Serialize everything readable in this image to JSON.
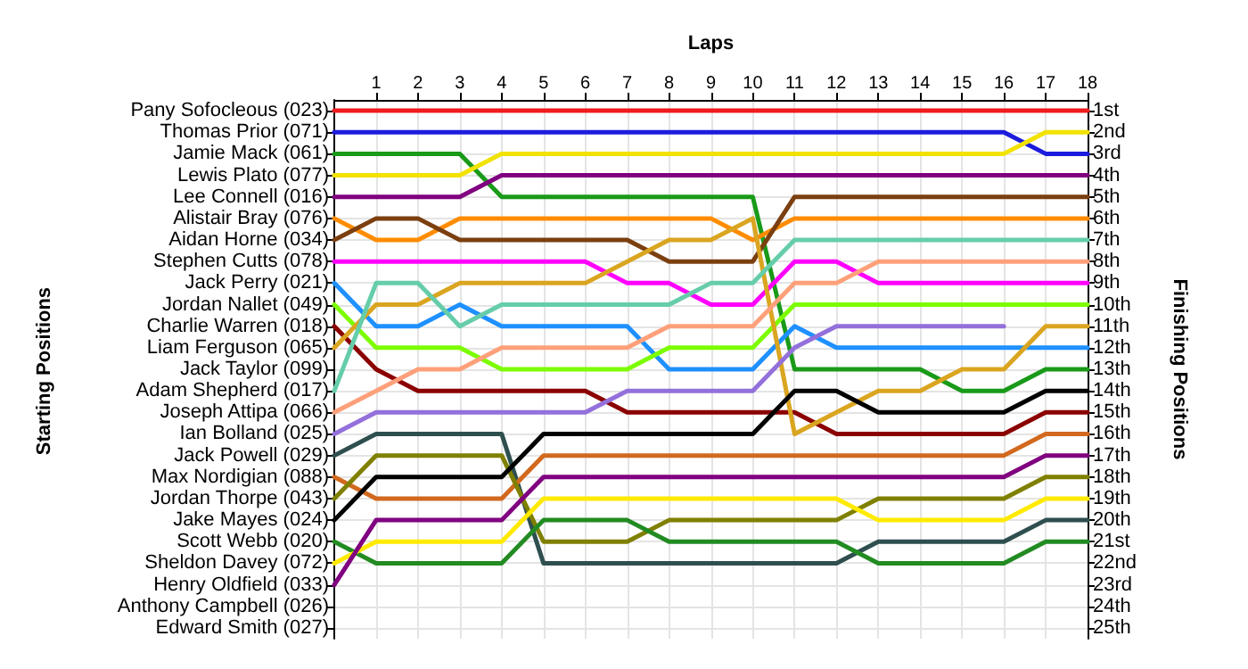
{
  "chart_data": {
    "type": "line",
    "xlabel": "Laps",
    "annotations": [
      "Starting Positions"
    ],
    "y2label": "Finishing Positions",
    "x": [
      0,
      1,
      2,
      3,
      4,
      5,
      6,
      7,
      8,
      9,
      10,
      11,
      12,
      13,
      14,
      15,
      16,
      17,
      18
    ],
    "xlim": [
      0,
      18
    ],
    "xticks": [
      1,
      2,
      3,
      4,
      5,
      6,
      7,
      8,
      9,
      10,
      11,
      12,
      13,
      14,
      15,
      16,
      17,
      18
    ],
    "y_categories": [
      "Pany Sofocleous (023)",
      "Thomas Prior (071)",
      "Jamie Mack (061)",
      "Lewis Plato (077)",
      "Lee Connell (016)",
      "Alistair Bray (076)",
      "Aidan Horne (034)",
      "Stephen Cutts (078)",
      "Jack Perry (021)",
      "Jordan Nallet (049)",
      "Charlie Warren (018)",
      "Liam Ferguson (065)",
      "Jack Taylor (099)",
      "Adam Shepherd (017)",
      "Joseph Attipa (066)",
      "Ian Bolland (025)",
      "Jack Powell (029)",
      "Max Nordigian (088)",
      "Jordan Thorpe (043)",
      "Jake Mayes (024)",
      "Scott Webb (020)",
      "Sheldon Davey (072)",
      "Henry Oldfield (033)",
      "Anthony Campbell (026)",
      "Edward Smith (027)"
    ],
    "y2lim": [
      25.5,
      0.5
    ],
    "y2ticks": [
      {
        "value": 1,
        "label": "1st"
      },
      {
        "value": 2,
        "label": "2nd"
      },
      {
        "value": 3,
        "label": "3rd"
      },
      {
        "value": 4,
        "label": "4th"
      },
      {
        "value": 5,
        "label": "5th"
      },
      {
        "value": 6,
        "label": "6th"
      },
      {
        "value": 7,
        "label": "7th"
      },
      {
        "value": 8,
        "label": "8th"
      },
      {
        "value": 9,
        "label": "9th"
      },
      {
        "value": 10,
        "label": "10th"
      },
      {
        "value": 11,
        "label": "11th"
      },
      {
        "value": 12,
        "label": "12th"
      },
      {
        "value": 13,
        "label": "13th"
      },
      {
        "value": 14,
        "label": "14th"
      },
      {
        "value": 15,
        "label": "15th"
      },
      {
        "value": 16,
        "label": "16th"
      },
      {
        "value": 17,
        "label": "17th"
      },
      {
        "value": 18,
        "label": "18th"
      },
      {
        "value": 19,
        "label": "19th"
      },
      {
        "value": 20,
        "label": "20th"
      },
      {
        "value": 21,
        "label": "21st"
      },
      {
        "value": 22,
        "label": "22nd"
      },
      {
        "value": 23,
        "label": "23rd"
      },
      {
        "value": 24,
        "label": "24th"
      },
      {
        "value": 25,
        "label": "25th"
      }
    ],
    "grid": true,
    "marker": "none",
    "line_style": "solid",
    "series": [
      {
        "color": "#ee1c1c",
        "axis": "y2",
        "values": [
          1,
          1,
          1,
          1,
          1,
          1,
          1,
          1,
          1,
          1,
          1,
          1,
          1,
          1,
          1,
          1,
          1,
          1,
          1
        ]
      },
      {
        "color": "#1c1cdd",
        "axis": "y2",
        "values": [
          2,
          2,
          2,
          2,
          2,
          2,
          2,
          2,
          2,
          2,
          2,
          2,
          2,
          2,
          2,
          2,
          2,
          3,
          3
        ]
      },
      {
        "color": "#199a19",
        "axis": "y2",
        "values": [
          3,
          3,
          3,
          3,
          5,
          5,
          5,
          5,
          5,
          5,
          5,
          13,
          13,
          13,
          13,
          14,
          14,
          13,
          13
        ]
      },
      {
        "color": "#f2e200",
        "axis": "y2",
        "values": [
          4,
          4,
          4,
          4,
          3,
          3,
          3,
          3,
          3,
          3,
          3,
          3,
          3,
          3,
          3,
          3,
          3,
          2,
          2
        ]
      },
      {
        "color": "#800080",
        "axis": "y2",
        "values": [
          5,
          5,
          5,
          5,
          4,
          4,
          4,
          4,
          4,
          4,
          4,
          4,
          4,
          4,
          4,
          4,
          4,
          4,
          4
        ]
      },
      {
        "color": "#ff8c00",
        "axis": "y2",
        "values": [
          6,
          7,
          7,
          6,
          6,
          6,
          6,
          6,
          6,
          6,
          7,
          6,
          6,
          6,
          6,
          6,
          6,
          6,
          6
        ]
      },
      {
        "color": "#7b3f10",
        "axis": "y2",
        "values": [
          7,
          6,
          6,
          7,
          7,
          7,
          7,
          7,
          8,
          8,
          8,
          5,
          5,
          5,
          5,
          5,
          5,
          5,
          5
        ]
      },
      {
        "color": "#ff00ff",
        "axis": "y2",
        "values": [
          8,
          8,
          8,
          8,
          8,
          8,
          8,
          9,
          9,
          10,
          10,
          8,
          8,
          9,
          9,
          9,
          9,
          9,
          9
        ]
      },
      {
        "color": "#1e90ff",
        "axis": "y2",
        "values": [
          9,
          11,
          11,
          10,
          11,
          11,
          11,
          11,
          13,
          13,
          13,
          11,
          12,
          12,
          12,
          12,
          12,
          12,
          12
        ]
      },
      {
        "color": "#7cfc00",
        "axis": "y2",
        "values": [
          10,
          12,
          12,
          12,
          13,
          13,
          13,
          13,
          12,
          12,
          12,
          10,
          10,
          10,
          10,
          10,
          10,
          10,
          10
        ]
      },
      {
        "color": "#8b0000",
        "axis": "y2",
        "values": [
          11,
          13,
          14,
          14,
          14,
          14,
          14,
          15,
          15,
          15,
          15,
          15,
          16,
          16,
          16,
          16,
          16,
          15,
          15
        ]
      },
      {
        "color": "#daa520",
        "axis": "y2",
        "values": [
          12,
          10,
          10,
          9,
          9,
          9,
          9,
          8,
          7,
          7,
          6,
          16,
          15,
          14,
          14,
          13,
          13,
          11,
          11
        ]
      },
      {
        "color": "#66cdaa",
        "axis": "y2",
        "values": [
          14,
          9,
          9,
          11,
          10,
          10,
          10,
          10,
          10,
          9,
          9,
          7,
          7,
          7,
          7,
          7,
          7,
          7,
          7
        ]
      },
      {
        "color": "#ffa07a",
        "axis": "y2",
        "values": [
          15,
          14,
          13,
          13,
          12,
          12,
          12,
          12,
          11,
          11,
          11,
          9,
          9,
          8,
          8,
          8,
          8,
          8,
          8
        ]
      },
      {
        "color": "#9370db",
        "axis": "y2",
        "values": [
          16,
          15,
          15,
          15,
          15,
          15,
          15,
          14,
          14,
          14,
          14,
          12,
          11,
          11,
          11,
          11,
          11,
          null,
          null
        ]
      },
      {
        "color": "#2f4f4f",
        "axis": "y2",
        "values": [
          17,
          16,
          16,
          16,
          16,
          22,
          22,
          22,
          22,
          22,
          22,
          22,
          22,
          21,
          21,
          21,
          21,
          20,
          20
        ]
      },
      {
        "color": "#d2691e",
        "axis": "y2",
        "values": [
          18,
          19,
          19,
          19,
          19,
          17,
          17,
          17,
          17,
          17,
          17,
          17,
          17,
          17,
          17,
          17,
          17,
          16,
          16
        ]
      },
      {
        "color": "#808000",
        "axis": "y2",
        "values": [
          19,
          17,
          17,
          17,
          17,
          21,
          21,
          21,
          20,
          20,
          20,
          20,
          20,
          19,
          19,
          19,
          19,
          18,
          18
        ]
      },
      {
        "color": "#000000",
        "axis": "y2",
        "values": [
          20,
          18,
          18,
          18,
          18,
          16,
          16,
          16,
          16,
          16,
          16,
          14,
          14,
          15,
          15,
          15,
          15,
          14,
          14
        ]
      },
      {
        "color": "#228b22",
        "axis": "y2",
        "values": [
          21,
          22,
          22,
          22,
          22,
          20,
          20,
          20,
          21,
          21,
          21,
          21,
          21,
          22,
          22,
          22,
          22,
          21,
          21
        ]
      },
      {
        "color": "#ffea00",
        "axis": "y2",
        "values": [
          22,
          21,
          21,
          21,
          21,
          19,
          19,
          19,
          19,
          19,
          19,
          19,
          19,
          20,
          20,
          20,
          20,
          19,
          19
        ]
      },
      {
        "color": "#800080",
        "axis": "y2",
        "values": [
          23,
          20,
          20,
          20,
          20,
          18,
          18,
          18,
          18,
          18,
          18,
          18,
          18,
          18,
          18,
          18,
          18,
          17,
          17
        ]
      }
    ]
  }
}
